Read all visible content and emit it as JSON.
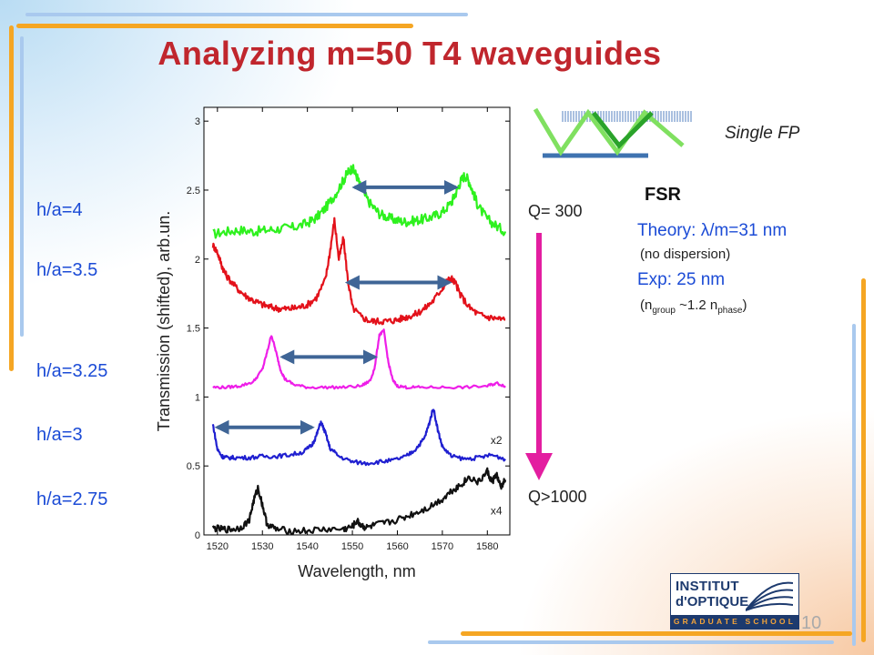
{
  "slide": {
    "title": "Analyzing m=50 T4 waveguides",
    "page_number": "10"
  },
  "samples": [
    {
      "label": "h/a=4",
      "color": "#2ef11e"
    },
    {
      "label": "h/a=3.5",
      "color": "#e3111a"
    },
    {
      "label": "h/a=3.25",
      "color": "#ee1ee8"
    },
    {
      "label": "h/a=3",
      "color": "#1f1fd0"
    },
    {
      "label": "h/a=2.75",
      "color": "#111111"
    }
  ],
  "q_labels": {
    "top": "Q= 300",
    "bottom": "Q>1000"
  },
  "single_fp_label": "Single FP",
  "fsr": {
    "heading": "FSR",
    "theory": "Theory: λ/m=31 nm",
    "theory_note": "(no dispersion)",
    "exp": "Exp: 25 nm",
    "exp_note_prefix": "(n",
    "exp_note_sub1": "group",
    "exp_note_mid": " ~1.2 n",
    "exp_note_sub2": "phase",
    "exp_note_suffix": ")"
  },
  "logo": {
    "line1": "INSTITUT",
    "line2": "d'OPTIQUE",
    "line3": "GRADUATE SCHOOL"
  },
  "chart_data": {
    "type": "line",
    "xlabel": "Wavelength, nm",
    "ylabel": "Transmission (shifted), arb.un.",
    "xlim": [
      1517,
      1585
    ],
    "ylim": [
      0,
      3.1
    ],
    "x_ticks": [
      1520,
      1530,
      1540,
      1550,
      1560,
      1570,
      1580
    ],
    "y_ticks": [
      0,
      0.5,
      1,
      1.5,
      2,
      2.5,
      3
    ],
    "y_tick_labels": [
      "0",
      "0.5",
      "1",
      "1.5",
      "2",
      "2.5",
      "3"
    ],
    "annotations": [
      {
        "text": "x2",
        "x": 1582,
        "y": 0.66
      },
      {
        "text": "x4",
        "x": 1582,
        "y": 0.15
      }
    ],
    "series": [
      {
        "color": "#2ef11e",
        "x": [
          1519,
          1522,
          1525,
          1528,
          1531,
          1534,
          1537,
          1540,
          1542,
          1544,
          1546,
          1548,
          1549,
          1550,
          1551,
          1552,
          1554,
          1556,
          1558,
          1560,
          1562,
          1564,
          1566,
          1568,
          1570,
          1572,
          1573,
          1574,
          1575,
          1576,
          1577,
          1578,
          1580,
          1582,
          1584
        ],
        "y": [
          2.18,
          2.2,
          2.21,
          2.2,
          2.21,
          2.22,
          2.23,
          2.26,
          2.3,
          2.37,
          2.46,
          2.57,
          2.63,
          2.66,
          2.6,
          2.5,
          2.4,
          2.33,
          2.3,
          2.28,
          2.27,
          2.28,
          2.29,
          2.31,
          2.34,
          2.41,
          2.48,
          2.56,
          2.61,
          2.56,
          2.47,
          2.38,
          2.29,
          2.24,
          2.2
        ]
      },
      {
        "color": "#e3111a",
        "x": [
          1519,
          1520,
          1521,
          1522,
          1524,
          1526,
          1528,
          1530,
          1532,
          1534,
          1536,
          1538,
          1540,
          1542,
          1544,
          1545,
          1546,
          1547,
          1548,
          1549,
          1550,
          1552,
          1554,
          1556,
          1558,
          1560,
          1562,
          1564,
          1566,
          1568,
          1570,
          1571,
          1572,
          1573,
          1574,
          1576,
          1578,
          1580,
          1582,
          1584
        ],
        "y": [
          2.1,
          2.05,
          1.95,
          1.88,
          1.8,
          1.74,
          1.7,
          1.67,
          1.65,
          1.64,
          1.64,
          1.65,
          1.67,
          1.72,
          1.85,
          2.05,
          2.28,
          2.0,
          2.15,
          1.85,
          1.65,
          1.58,
          1.55,
          1.55,
          1.55,
          1.56,
          1.58,
          1.6,
          1.64,
          1.7,
          1.79,
          1.84,
          1.86,
          1.82,
          1.74,
          1.65,
          1.6,
          1.58,
          1.57,
          1.56
        ]
      },
      {
        "color": "#ee1ee8",
        "x": [
          1519,
          1522,
          1525,
          1528,
          1530,
          1531,
          1532,
          1533,
          1534,
          1535,
          1537,
          1540,
          1544,
          1548,
          1552,
          1554,
          1555,
          1556,
          1557,
          1558,
          1559,
          1560,
          1562,
          1565,
          1570,
          1575,
          1580,
          1582,
          1584
        ],
        "y": [
          1.07,
          1.07,
          1.08,
          1.11,
          1.2,
          1.32,
          1.45,
          1.33,
          1.2,
          1.13,
          1.09,
          1.07,
          1.07,
          1.07,
          1.08,
          1.12,
          1.22,
          1.45,
          1.48,
          1.25,
          1.12,
          1.08,
          1.07,
          1.07,
          1.07,
          1.07,
          1.08,
          1.1,
          1.08
        ]
      },
      {
        "color": "#1f1fd0",
        "x": [
          1519,
          1520,
          1521,
          1522,
          1524,
          1527,
          1530,
          1533,
          1536,
          1539,
          1541,
          1542,
          1543,
          1544,
          1545,
          1547,
          1550,
          1553,
          1556,
          1559,
          1562,
          1564,
          1566,
          1567,
          1568,
          1569,
          1570,
          1572,
          1575,
          1578,
          1581,
          1584
        ],
        "y": [
          0.8,
          0.62,
          0.57,
          0.56,
          0.56,
          0.56,
          0.57,
          0.57,
          0.58,
          0.6,
          0.65,
          0.72,
          0.82,
          0.74,
          0.63,
          0.57,
          0.53,
          0.52,
          0.53,
          0.54,
          0.57,
          0.62,
          0.7,
          0.8,
          0.92,
          0.76,
          0.64,
          0.57,
          0.55,
          0.56,
          0.58,
          0.55
        ]
      },
      {
        "color": "#111111",
        "x": [
          1519,
          1521,
          1523,
          1525,
          1527,
          1528,
          1529,
          1530,
          1531,
          1533,
          1536,
          1540,
          1544,
          1548,
          1550,
          1551,
          1552,
          1553,
          1555,
          1558,
          1561,
          1564,
          1567,
          1570,
          1572,
          1574,
          1576,
          1578,
          1580,
          1581,
          1582,
          1583,
          1584
        ],
        "y": [
          0.05,
          0.04,
          0.04,
          0.05,
          0.1,
          0.24,
          0.34,
          0.22,
          0.08,
          0.04,
          0.03,
          0.03,
          0.04,
          0.04,
          0.06,
          0.1,
          0.07,
          0.05,
          0.07,
          0.09,
          0.12,
          0.16,
          0.2,
          0.26,
          0.32,
          0.36,
          0.42,
          0.38,
          0.46,
          0.38,
          0.44,
          0.34,
          0.4
        ]
      }
    ]
  }
}
